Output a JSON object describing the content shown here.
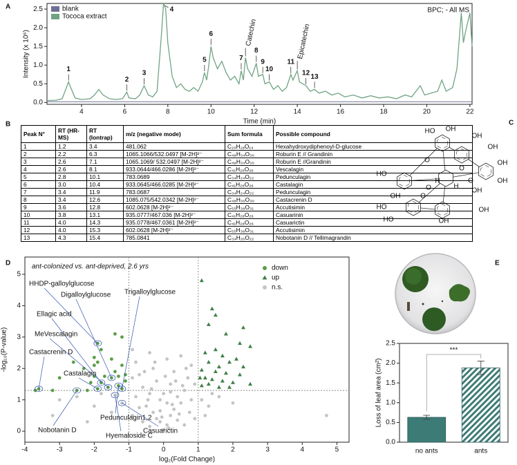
{
  "panels": [
    "A",
    "B",
    "C",
    "D",
    "E"
  ],
  "chart_data": [
    {
      "type": "line",
      "label": "BPC; - All MS",
      "xlabel": "Time (min)",
      "ylabel": "Intensity (x 10⁶)",
      "xlim": [
        2.4,
        22.1
      ],
      "ylim": [
        -0.05,
        2.65
      ],
      "xticks": [
        4,
        6,
        8,
        10,
        12,
        14,
        16,
        18,
        20,
        22
      ],
      "yticks": [
        {
          "value": 0,
          "label": "0.0"
        },
        0.5,
        {
          "value": 1,
          "label": "1.0"
        },
        1.5,
        {
          "value": 2,
          "label": "2.0"
        },
        2.5
      ],
      "legend": "upper left",
      "series": [
        {
          "name": "blank",
          "color": "#6f6f96",
          "x": [
            2.4,
            22.1
          ],
          "values": [
            0.02,
            0.02
          ]
        },
        {
          "name": "Tococa extract",
          "color": "#6fa383",
          "x": [
            2.4,
            2.8,
            3.1,
            3.3,
            3.4,
            3.5,
            3.7,
            4.0,
            4.4,
            4.6,
            4.8,
            5.0,
            5.3,
            5.6,
            5.9,
            6.1,
            6.2,
            6.5,
            6.7,
            6.9,
            7.1,
            7.3,
            7.5,
            7.7,
            7.8,
            7.9,
            8.0,
            8.2,
            8.4,
            8.6,
            8.8,
            9.0,
            9.2,
            9.4,
            9.6,
            9.7,
            9.8,
            9.9,
            10.0,
            10.1,
            10.3,
            10.5,
            10.7,
            10.9,
            11.1,
            11.3,
            11.4,
            11.5,
            11.6,
            11.7,
            11.9,
            12.1,
            12.2,
            12.4,
            12.5,
            12.7,
            12.9,
            13.1,
            13.3,
            13.5,
            13.7,
            13.8,
            14.0,
            14.1,
            14.4,
            14.6,
            14.8,
            15.0,
            15.3,
            15.6,
            15.9,
            16.2,
            16.6,
            17.0,
            17.4,
            17.8,
            18.2,
            18.6,
            19.0,
            19.3,
            19.7,
            19.9,
            20.2,
            20.5,
            20.7,
            20.9,
            21.2,
            21.4,
            21.6,
            21.7,
            21.8,
            22.0,
            22.1
          ],
          "values": [
            0.05,
            0.06,
            0.1,
            0.4,
            0.55,
            0.4,
            0.12,
            0.08,
            0.1,
            0.2,
            0.35,
            0.2,
            0.1,
            0.08,
            0.1,
            0.28,
            0.12,
            0.1,
            0.2,
            0.45,
            0.2,
            0.15,
            0.3,
            1.8,
            2.65,
            2.5,
            1.6,
            0.7,
            0.4,
            0.5,
            0.35,
            0.3,
            0.4,
            0.3,
            0.55,
            0.8,
            0.6,
            1.0,
            1.5,
            1.2,
            0.9,
            1.1,
            0.8,
            0.6,
            0.7,
            0.5,
            0.85,
            0.6,
            1.2,
            0.9,
            0.7,
            1.05,
            0.7,
            0.75,
            0.5,
            0.55,
            0.35,
            0.45,
            0.3,
            0.4,
            0.75,
            0.6,
            0.85,
            0.55,
            0.45,
            0.3,
            0.35,
            0.25,
            0.3,
            0.2,
            0.25,
            0.15,
            0.2,
            0.12,
            0.18,
            0.12,
            0.15,
            0.1,
            0.2,
            0.15,
            0.45,
            0.2,
            0.25,
            0.3,
            0.6,
            0.3,
            0.4,
            0.9,
            2.4,
            1.6,
            1.9,
            2.4,
            1.5
          ]
        }
      ],
      "annotations": [
        {
          "text": "1",
          "x": 3.4,
          "y": 0.55
        },
        {
          "text": "2",
          "x": 6.1,
          "y": 0.28
        },
        {
          "text": "3",
          "x": 6.9,
          "y": 0.45
        },
        {
          "text": "4",
          "x": 7.8,
          "y": 2.65
        },
        {
          "text": "5",
          "x": 9.7,
          "y": 0.8
        },
        {
          "text": "6",
          "x": 10.0,
          "y": 1.5
        },
        {
          "text": "7",
          "x": 11.4,
          "y": 0.85
        },
        {
          "text": "Catechin",
          "x": 11.6,
          "y": 1.2
        },
        {
          "text": "8",
          "x": 12.1,
          "y": 1.05
        },
        {
          "text": "9",
          "x": 12.4,
          "y": 0.75
        },
        {
          "text": "10",
          "x": 12.7,
          "y": 0.55
        },
        {
          "text": "11",
          "x": 13.7,
          "y": 0.75
        },
        {
          "text": "Epicatechin",
          "x": 14.0,
          "y": 0.85
        },
        {
          "text": "12",
          "x": 14.4,
          "y": 0.45
        },
        {
          "text": "13",
          "x": 14.8,
          "y": 0.35
        }
      ]
    },
    {
      "type": "scatter",
      "title": "ant-colonized vs. ant-deprived, 2.6 yrs",
      "xlabel": "log₂(Fold Change)",
      "ylabel": "-log₁₀(P-value)",
      "xlim": [
        -4,
        5.35
      ],
      "ylim": [
        -0.35,
        5.55
      ],
      "xticks": [
        -4,
        -3,
        -2,
        -1,
        0,
        1,
        2,
        3,
        4,
        5
      ],
      "yticks": [
        0,
        1,
        2,
        3,
        4,
        5
      ],
      "thresholds": {
        "x": [
          -1,
          1
        ],
        "y": 1.3
      },
      "legend": "upper right",
      "series": [
        {
          "name": "down",
          "marker": "circle",
          "color": "#5a9e45",
          "x": [
            -3.6,
            -3.7,
            -3.2,
            -2.5,
            -2.2,
            -1.9,
            -1.8,
            -1.6,
            -1.3,
            -1.2,
            -1.1,
            -1.3,
            -1.5,
            -1.7,
            -1.9,
            -2.0,
            -2.6,
            -2.0,
            -1.8,
            -1.9,
            -1.5,
            -2.3,
            -1.2,
            -3.0,
            -2.0,
            -1.4,
            -1.2,
            -1.1,
            -2.1,
            -1.4
          ],
          "values": [
            1.35,
            1.3,
            1.3,
            1.3,
            1.3,
            1.35,
            1.55,
            1.4,
            1.45,
            1.35,
            1.6,
            1.75,
            1.7,
            1.75,
            2.2,
            2.1,
            2.2,
            2.35,
            2.6,
            2.8,
            2.3,
            2.0,
            2.1,
            1.7,
            1.75,
            3.1,
            3.0,
            1.8,
            1.55,
            1.9
          ]
        },
        {
          "name": "up",
          "marker": "triangle",
          "color": "#3f7f45",
          "x": [
            1.1,
            1.4,
            1.5,
            1.3,
            1.8,
            2.3,
            2.2,
            2.5,
            1.5,
            1.2,
            1.7,
            2.1,
            1.9,
            1.3,
            1.6,
            2.3,
            1.1,
            1.5,
            1.8,
            2.2,
            1.2,
            1.4,
            1.7,
            2.0,
            1.3,
            1.1,
            1.6,
            1.9,
            2.5,
            1.05
          ],
          "values": [
            4.8,
            3.9,
            3.7,
            3.4,
            3.1,
            3.3,
            2.8,
            2.7,
            2.6,
            2.5,
            2.4,
            2.3,
            2.2,
            2.2,
            2.05,
            2.05,
            1.95,
            1.9,
            1.85,
            1.8,
            1.7,
            1.65,
            1.6,
            1.55,
            1.5,
            1.45,
            1.4,
            1.4,
            1.5,
            1.7
          ]
        },
        {
          "name": "n.s.",
          "marker": "circle",
          "color": "#c4c4c4",
          "x": [
            0,
            0.1,
            -0.1,
            0.2,
            -0.2,
            0.3,
            -0.3,
            0.1,
            -0.1,
            0.4,
            -0.4,
            0.5,
            -0.5,
            0.6,
            -0.6,
            0.2,
            -0.2,
            0.7,
            -0.7,
            0.3,
            -0.3,
            0.8,
            -0.8,
            0.1,
            -0.4,
            0.5,
            -0.9,
            0.9,
            -0.9,
            0.6,
            -0.6,
            0.4,
            -0.4,
            0.8,
            -0.8,
            0.0,
            0.2,
            -0.1,
            0.35,
            -0.55,
            0.65,
            -0.25,
            0.45,
            -0.7,
            0.75,
            0.15,
            -0.05,
            0.55,
            -0.35,
            0.9,
            -0.9,
            0.05,
            -0.45,
            0.25,
            -1.5,
            -1.2,
            -2.0,
            -1.8,
            -2.5,
            -3.0,
            -3.2,
            -2.2,
            1.3,
            1.6,
            1.2,
            2.0,
            1.4,
            1.1,
            4.7,
            -1.4
          ],
          "values": [
            0.05,
            0.2,
            0.3,
            0.5,
            0.4,
            0.7,
            0.6,
            0.9,
            1.0,
            1.1,
            1.2,
            0.9,
            0.8,
            1.3,
            1.4,
            1.5,
            1.6,
            1.7,
            1.8,
            1.9,
            2.0,
            2.1,
            2.2,
            2.3,
            2.5,
            2.4,
            2.6,
            0.4,
            0.5,
            0.2,
            0.3,
            0.35,
            0.15,
            1.0,
            1.1,
            1.2,
            1.25,
            0.65,
            1.6,
            1.9,
            2.0,
            2.2,
            0.55,
            0.75,
            0.6,
            0.1,
            0.45,
            1.45,
            1.35,
            1.5,
            1.7,
            1.75,
            1.0,
            0.85,
            0.6,
            0.9,
            0.8,
            1.2,
            1.1,
            1.0,
            0.5,
            0.3,
            0.8,
            1.1,
            0.5,
            0.9,
            1.2,
            1.0,
            0.5,
            1.15
          ]
        }
      ],
      "annotations": [
        {
          "text": "HHDP-galloylglucose",
          "x": -1.9,
          "y": 2.8
        },
        {
          "text": "Digalloylglucose",
          "x": -1.5,
          "y": 1.7
        },
        {
          "text": "Trigalloylglucose",
          "x": -1.2,
          "y": 1.35
        },
        {
          "text": "Ellagic acid",
          "x": -1.8,
          "y": 1.55
        },
        {
          "text": "MeVescalagin",
          "x": -1.6,
          "y": 1.4
        },
        {
          "text": "Castacrenin D",
          "x": -3.6,
          "y": 1.35
        },
        {
          "text": "Castalagin",
          "x": -1.9,
          "y": 1.35
        },
        {
          "text": "Nobotanin D",
          "x": -2.5,
          "y": 1.3
        },
        {
          "text": "Pedunculagin1,2",
          "x": -1.3,
          "y": 1.45
        },
        {
          "text": "Hyemaloside C",
          "x": -1.4,
          "y": 1.15
        },
        {
          "text": "Casuarictin",
          "x": -1.2,
          "y": 0.9
        }
      ]
    },
    {
      "type": "bar",
      "ylabel": "Loss of leaf area (cm²)",
      "categories": [
        "no ants",
        "ants"
      ],
      "values": [
        0.63,
        1.88
      ],
      "errors": [
        0.05,
        0.17
      ],
      "color": "#3d7b76",
      "hatch": [
        false,
        true
      ],
      "ylim": [
        0,
        2.5
      ],
      "yticks": [
        {
          "value": 0,
          "label": "0.0"
        },
        0.5,
        {
          "value": 1,
          "label": "1.0"
        },
        1.5,
        {
          "value": 2,
          "label": "2.0"
        },
        2.5
      ],
      "significance": "***"
    }
  ],
  "table": {
    "header": [
      "Peak N°",
      "RT (HR-MS)",
      "RT (Iontrap)",
      "m/z (negative mode)",
      "Sum formula",
      "Possible compound"
    ],
    "rows": [
      [
        "1",
        "1.2",
        "3.4",
        "481.062",
        "C₂₀H₁₈O₁₄",
        "Hexahydroxydiphenoyl-D-glucose"
      ],
      [
        "2",
        "2.2",
        "6.3",
        "1065.1066/532.0497 [M-2H]²⁻",
        "C₄₈H₃₄O₃₀",
        "Roburin E // Grandinin"
      ],
      [
        "3",
        "2.6",
        "7.1",
        "1065.1069/ 532.0497 [M-2H]²⁻",
        "C₄₈H₃₄O₃₀",
        "Roburin E //Grandinin"
      ],
      [
        "4",
        "2.6",
        "8.1",
        "933.0644/466.0286 [M-2H]²⁻",
        "C₄₁H₂₆O₂₆",
        "Vescalagin"
      ],
      [
        "5",
        "2.8",
        "10.1",
        "783.0689",
        "C₃₄H₂₄O₂₂",
        "Pedunculagin"
      ],
      [
        "6",
        "3.0",
        "10.4",
        "933.0645/466.0285 [M-2H]²⁻",
        "C₄₁H₂₆O₂₆",
        "Castalagin"
      ],
      [
        "7",
        "3.4",
        "11.9",
        "783.0687",
        "C₃₄H₂₄O₂₂",
        "Pedunculagin"
      ],
      [
        "8",
        "3.4",
        "12.6",
        "1085.075/542.0342 [M-2H]²⁻",
        "C₄₈H₃₀O₃₀",
        "Castacrenin D"
      ],
      [
        "9",
        "3.6",
        "12.8",
        "602.0628 [M-2H]²⁻",
        "C₅₅H₃₈O₃₁",
        "Accutisimin"
      ],
      [
        "10",
        "3.8",
        "13.1",
        "935.0777/467.036 [M-2H]²⁻",
        "C₄₁H₂₈O₂₆",
        "Casuarinin"
      ],
      [
        "11",
        "4.0",
        "14.3",
        "935.0778/467.0361 [M-2H]²⁻",
        "C₄₁H₂₈O₂₆",
        "Casuarictin"
      ],
      [
        "12",
        "4.0",
        "15.3",
        "602.0628 [M-2H]²⁻",
        "C₅₅H₃₈O₃₁",
        "Accutisimin"
      ],
      [
        "13",
        "4.3",
        "15.4",
        "785.0841",
        "C₃₄H₂₆O₂₂",
        "Nobotanin D // Tellimagrandin"
      ]
    ]
  },
  "structure": {
    "atom_labels": [
      "HO",
      "OH",
      "OH",
      "OH",
      "OH",
      "OH",
      "O",
      "O",
      "HO",
      "OH",
      "H",
      "H",
      "O",
      "OH",
      "HO",
      "HO",
      "OH",
      "O",
      "OH",
      "O"
    ]
  }
}
